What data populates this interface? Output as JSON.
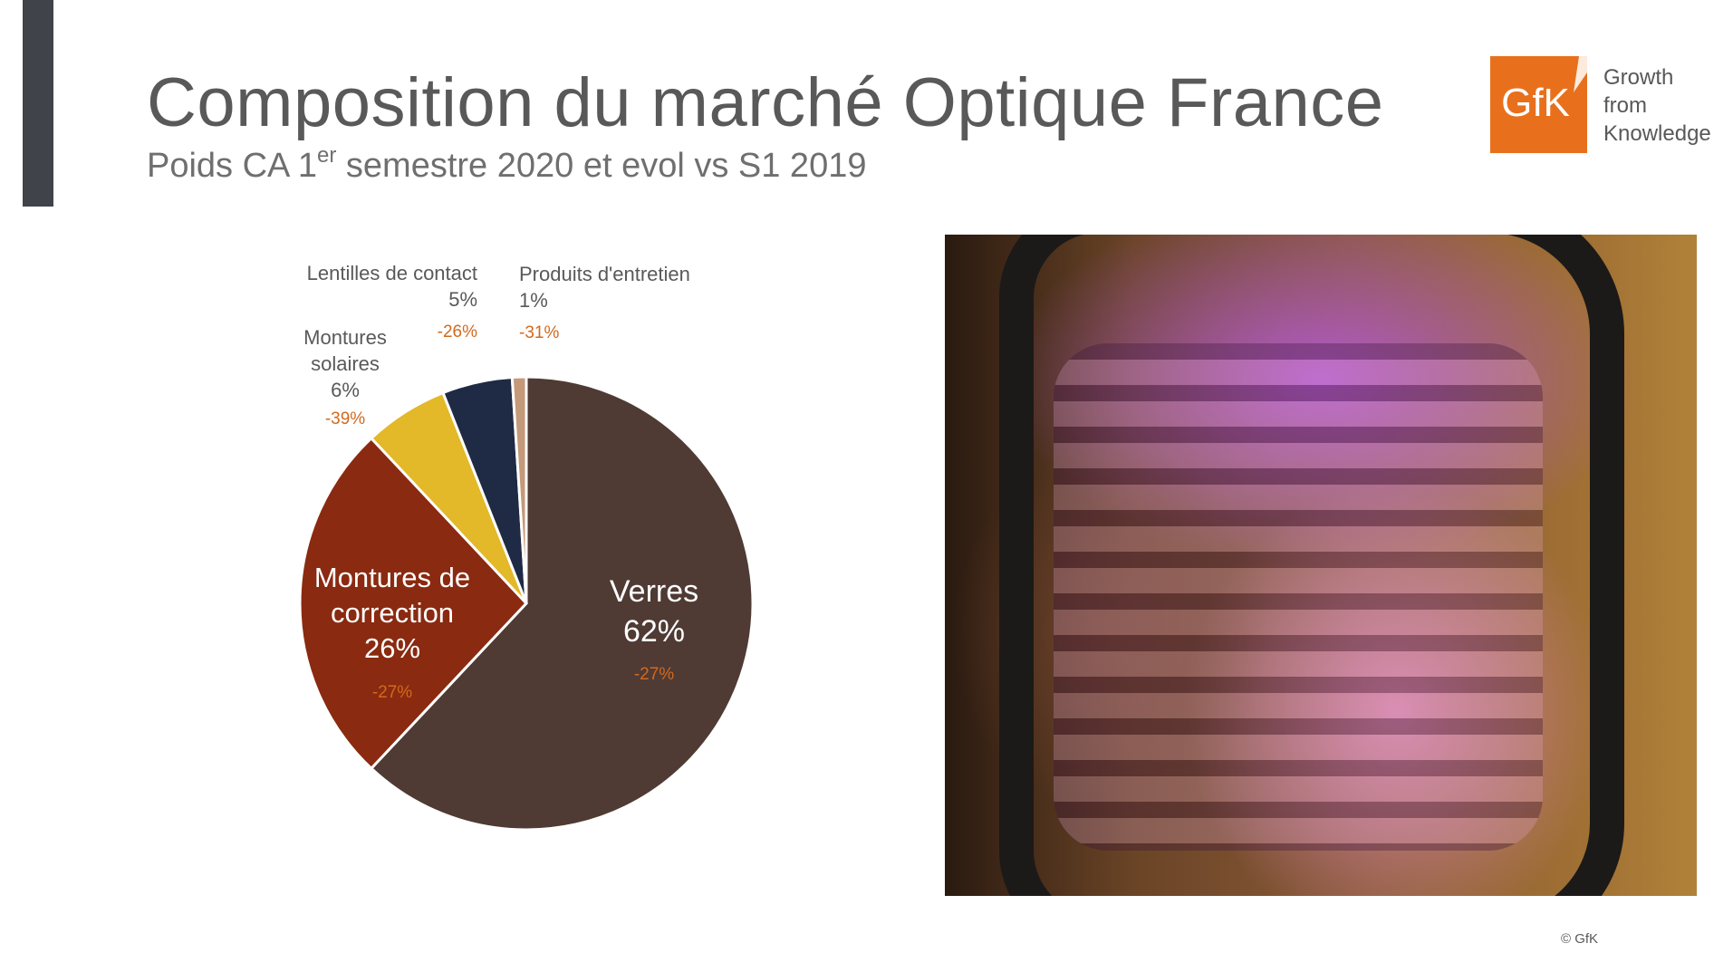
{
  "header": {
    "title": "Composition du marché Optique France",
    "subtitle_prefix": "Poids CA 1",
    "subtitle_sup": "er",
    "subtitle_suffix": " semestre 2020 et evol vs S1 2019"
  },
  "logo": {
    "mark": "GfK",
    "line1": "Growth",
    "line2": "from",
    "line3": "Knowledge",
    "color": "#e8701d"
  },
  "photo": {
    "icon": "eyeglasses-reflection-photo"
  },
  "footer": {
    "copyright": "© GfK"
  },
  "chart_data": {
    "type": "pie",
    "unit": "%",
    "slices": [
      {
        "name": "Verres",
        "label_lines": [
          "Verres"
        ],
        "value": 62,
        "value_label": "62%",
        "evol": "-27%",
        "color": "#4f3a34"
      },
      {
        "name": "Montures de correction",
        "label_lines": [
          "Montures de",
          "correction"
        ],
        "value": 26,
        "value_label": "26%",
        "evol": "-27%",
        "color": "#8a2a10"
      },
      {
        "name": "Montures solaires",
        "label_lines": [
          "Montures",
          "solaires"
        ],
        "value": 6,
        "value_label": "6%",
        "evol": "-39%",
        "color": "#e3b829"
      },
      {
        "name": "Lentilles de contact",
        "label_lines": [
          "Lentilles de contact"
        ],
        "value": 5,
        "value_label": "5%",
        "evol": "-26%",
        "color": "#1f2a44"
      },
      {
        "name": "Produits d'entretien",
        "label_lines": [
          "Produits d'entretien"
        ],
        "value": 1,
        "value_label": "1%",
        "evol": "-31%",
        "color": "#c49a7a"
      }
    ],
    "start": "top, clockwise",
    "colors": {
      "label_dark": "#595959",
      "label_light": "#ffffff",
      "evol": "#d2691e",
      "separator": "#ffffff"
    }
  }
}
